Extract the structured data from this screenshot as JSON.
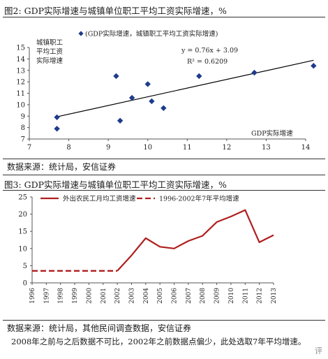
{
  "chart_data": [
    {
      "type": "scatter",
      "title": "图2: GDP实际增速与城镇单位职工平均工资实际增速，%",
      "xlabel": "GDP实际增速",
      "ylabel": "城镇职工平均工资实际增速",
      "ylabel_lines": [
        "城镇职工",
        "平均工资",
        "实际增速"
      ],
      "legend": "(GDP实际增速，城镇职工平均工资实际增速)",
      "legend_position": "top",
      "xlim": [
        7,
        14
      ],
      "ylim": [
        7,
        15
      ],
      "xticks": [
        7,
        8,
        9,
        10,
        11,
        12,
        13,
        14
      ],
      "yticks": [
        7,
        8,
        9,
        10,
        11,
        12,
        13,
        14,
        15
      ],
      "grid": false,
      "points": [
        {
          "x": 7.7,
          "y": 8.9
        },
        {
          "x": 7.7,
          "y": 7.9
        },
        {
          "x": 9.2,
          "y": 12.5
        },
        {
          "x": 9.3,
          "y": 8.6
        },
        {
          "x": 9.6,
          "y": 10.6
        },
        {
          "x": 10.0,
          "y": 11.8
        },
        {
          "x": 10.1,
          "y": 10.3
        },
        {
          "x": 10.4,
          "y": 9.7
        },
        {
          "x": 11.3,
          "y": 12.5
        },
        {
          "x": 12.7,
          "y": 12.8
        },
        {
          "x": 14.2,
          "y": 13.4
        }
      ],
      "trendline": {
        "slope": 0.76,
        "intercept": 3.09,
        "x_range": [
          7.7,
          14.2
        ]
      },
      "annotations": [
        "y = 0.76x + 3.09",
        "R² = 0.6209"
      ],
      "source": "数据来源：统计局，安信证券"
    },
    {
      "type": "line",
      "title": "图3: GDP实际增速与城镇单位职工平均工资实际增速，%",
      "x": [
        1996,
        1997,
        1998,
        1999,
        2000,
        2001,
        2002,
        2003,
        2004,
        2005,
        2006,
        2007,
        2008,
        2009,
        2010,
        2011,
        2012,
        2013
      ],
      "ylim": [
        0,
        25
      ],
      "yticks": [
        0,
        5,
        10,
        15,
        20,
        25
      ],
      "grid": false,
      "legend_position": "top",
      "series": [
        {
          "name": "外出农民工月均工资增速",
          "style": "solid",
          "color": "#b01e1e",
          "points": [
            {
              "x": 2002,
              "y": 3.5
            },
            {
              "x": 2003,
              "y": 8.0
            },
            {
              "x": 2004,
              "y": 13.0
            },
            {
              "x": 2005,
              "y": 10.5
            },
            {
              "x": 2006,
              "y": 10.0
            },
            {
              "x": 2007,
              "y": 12.2
            },
            {
              "x": 2008,
              "y": 13.7
            },
            {
              "x": 2009,
              "y": 17.7
            },
            {
              "x": 2010,
              "y": 19.3
            },
            {
              "x": 2011,
              "y": 21.2
            },
            {
              "x": 2012,
              "y": 11.8
            },
            {
              "x": 2013,
              "y": 13.9
            }
          ]
        },
        {
          "name": "1996-2002年7年平均增速",
          "style": "dashed",
          "color": "#b01e1e",
          "points": [
            {
              "x": 1996,
              "y": 3.5
            },
            {
              "x": 2002,
              "y": 3.5
            }
          ]
        }
      ],
      "source": "数据来源：统计局，其他民间调查数据，安信证券",
      "footnote": "2008年之前与之后数据不可比，2002年之前数据点偏少，此处选取7年平均增速。",
      "watermark": "评"
    }
  ],
  "colors": {
    "scatter_marker": "#1f3b8c",
    "trendline": "#000000",
    "line_series": "#b01e1e",
    "axis": "#555555"
  }
}
